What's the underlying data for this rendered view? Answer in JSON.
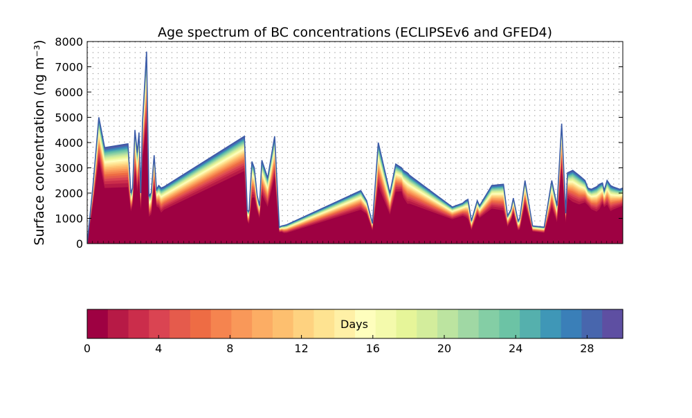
{
  "chart_data": {
    "type": "area",
    "title": "Age spectrum of BC concentrations (ECLIPSEv6 and GFED4)",
    "ylabel": "Surface concentration (ng m⁻³)",
    "xlabel": "",
    "ylim": [
      0,
      8000
    ],
    "yticks": [
      0,
      1000,
      2000,
      3000,
      4000,
      5000,
      6000,
      7000,
      8000
    ],
    "grid": true,
    "legend": "none",
    "total": {
      "x": [
        0,
        1,
        2,
        3,
        7,
        7.5,
        7.8,
        8.2,
        8.6,
        8.9,
        9.2,
        9.5,
        10.2,
        10.6,
        11,
        11.5,
        11.9,
        12.3,
        12.7,
        13.2,
        27,
        27.5,
        27.8,
        28.3,
        28.7,
        29.2,
        29.6,
        30,
        31,
        32.2,
        33,
        33.4,
        33.8,
        34.3,
        47,
        48,
        49,
        50,
        52,
        53,
        54,
        54.3,
        55,
        55.4,
        62.7,
        64.5,
        65,
        65.4,
        66,
        67,
        67.4,
        69.5,
        71.5,
        72.2,
        72.8,
        73.2,
        74,
        74.3,
        75.2,
        76.5,
        78.5,
        79.8,
        80.7,
        81.5,
        82.2,
        82.5,
        83.4,
        84.5,
        85.5,
        86,
        86.6,
        87.5,
        88,
        88.5,
        88.8,
        89.3,
        89.9,
        90.3,
        91.5,
        92
      ],
      "y": [
        0,
        2300,
        5000,
        3800,
        3950,
        2000,
        2200,
        4500,
        3600,
        4400,
        2000,
        4800,
        7600,
        1900,
        2000,
        3500,
        2150,
        2300,
        2200,
        2250,
        4250,
        1300,
        1300,
        3250,
        3000,
        1900,
        1500,
        3300,
        2600,
        4250,
        650,
        700,
        720,
        750,
        2100,
        1700,
        800,
        4000,
        2000,
        3150,
        3000,
        2900,
        2800,
        2700,
        1450,
        1600,
        1700,
        1750,
        900,
        1700,
        1500,
        2300,
        2350,
        1100,
        1350,
        1800,
        900,
        1000,
        2500,
        700,
        650,
        2500,
        1500,
        4750,
        1200,
        2800,
        2900,
        2700,
        2500,
        2200,
        2150,
        2250,
        2350,
        2400,
        2100,
        2500,
        2300,
        2250,
        2150,
        2200
      ]
    },
    "colorbar": {
      "label": "Days",
      "min": 0,
      "max": 30,
      "ticks": [
        0,
        4,
        8,
        12,
        16,
        20,
        24,
        28
      ],
      "colors": [
        "#9e0142",
        "#b71a46",
        "#cb2d4b",
        "#da4452",
        "#e55b4c",
        "#ee6c44",
        "#f5844f",
        "#f99859",
        "#fcad64",
        "#fdbf6f",
        "#fed280",
        "#fee391",
        "#fff0a6",
        "#fefebd",
        "#f4faac",
        "#e6f599",
        "#d3ed9c",
        "#bce4a0",
        "#a0d8a4",
        "#84cea5",
        "#6cc3a5",
        "#55b0ad",
        "#3f97b7",
        "#3a7fb8",
        "#4866ad",
        "#5e4fa2"
      ]
    }
  }
}
